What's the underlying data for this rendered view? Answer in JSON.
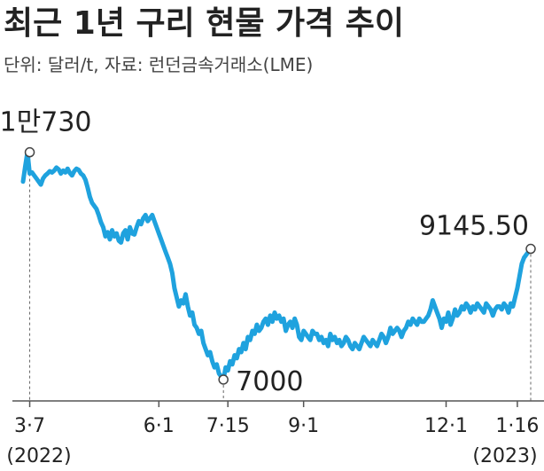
{
  "chart_data": {
    "type": "line",
    "title": "최근 1년 구리 현물 가격 추이",
    "subtitle": "단위: 달러/t, 자료: 런던금속거래소(LME)",
    "series_color": "#1fa2de",
    "ylim": [
      6650,
      10900
    ],
    "x_ticks": [
      {
        "label": "3·7",
        "index": 3
      },
      {
        "label": "6·1",
        "index": 61
      },
      {
        "label": "7·15",
        "index": 92
      },
      {
        "label": "9·1",
        "index": 126
      },
      {
        "label": "12·1",
        "index": 190
      },
      {
        "label": "1·16",
        "index": 222
      }
    ],
    "year_labels": [
      {
        "label": "(2022)",
        "index": 3
      },
      {
        "label": "(2023)",
        "index": 222
      }
    ],
    "annotations": [
      {
        "label": "1만730",
        "index": 3,
        "value": 10730,
        "pos": "above"
      },
      {
        "label": "7000",
        "index": 90,
        "value": 7000,
        "pos": "right"
      },
      {
        "label": "9145.50",
        "index": 228,
        "value": 9145.5,
        "pos": "above-left"
      }
    ],
    "values": [
      10250,
      10500,
      10730,
      10380,
      10400,
      10350,
      10300,
      10250,
      10200,
      10300,
      10350,
      10380,
      10420,
      10400,
      10430,
      10480,
      10450,
      10380,
      10430,
      10400,
      10460,
      10390,
      10350,
      10420,
      10460,
      10440,
      10380,
      10350,
      10280,
      10150,
      10000,
      9900,
      9850,
      9800,
      9700,
      9580,
      9500,
      9350,
      9420,
      9300,
      9450,
      9350,
      9400,
      9280,
      9250,
      9400,
      9450,
      9300,
      9500,
      9400,
      9380,
      9500,
      9600,
      9550,
      9650,
      9700,
      9600,
      9650,
      9700,
      9600,
      9500,
      9400,
      9300,
      9200,
      9100,
      9000,
      8900,
      8750,
      8500,
      8350,
      8200,
      8300,
      8250,
      8400,
      8200,
      8050,
      8100,
      7900,
      7850,
      7750,
      7800,
      7600,
      7500,
      7400,
      7450,
      7300,
      7200,
      7250,
      7100,
      7050,
      7000,
      7200,
      7150,
      7300,
      7250,
      7400,
      7350,
      7500,
      7450,
      7600,
      7500,
      7700,
      7650,
      7800,
      7750,
      7900,
      7800,
      7850,
      7950,
      8000,
      7900,
      8050,
      7950,
      8100,
      8000,
      8050,
      7950,
      8000,
      7800,
      7900,
      7950,
      7850,
      8000,
      7900,
      7700,
      7650,
      7800,
      7750,
      7700,
      7650,
      7800,
      7750,
      7750,
      7650,
      7700,
      7600,
      7650,
      7550,
      7750,
      7650,
      7700,
      7600,
      7650,
      7550,
      7600,
      7700,
      7650,
      7550,
      7500,
      7600,
      7550,
      7500,
      7600,
      7700,
      7650,
      7600,
      7550,
      7650,
      7600,
      7550,
      7650,
      7750,
      7700,
      7600,
      7700,
      7850,
      7750,
      7800,
      7850,
      7800,
      7700,
      7800,
      7850,
      7950,
      7900,
      8000,
      7950,
      7900,
      8000,
      7950,
      7950,
      8000,
      8050,
      8150,
      8300,
      8200,
      8100,
      8000,
      7850,
      8000,
      7950,
      8100,
      7900,
      8000,
      8150,
      8050,
      8100,
      8200,
      8150,
      8250,
      8200,
      8100,
      8200,
      8150,
      8250,
      8200,
      8150,
      8100,
      8250,
      8200,
      8150,
      8050,
      8150,
      8200,
      8200,
      8150,
      8250,
      8200,
      8100,
      8250,
      8200,
      8350,
      8500,
      8700,
      8900,
      9000,
      9050,
      9100,
      9145.5
    ]
  }
}
